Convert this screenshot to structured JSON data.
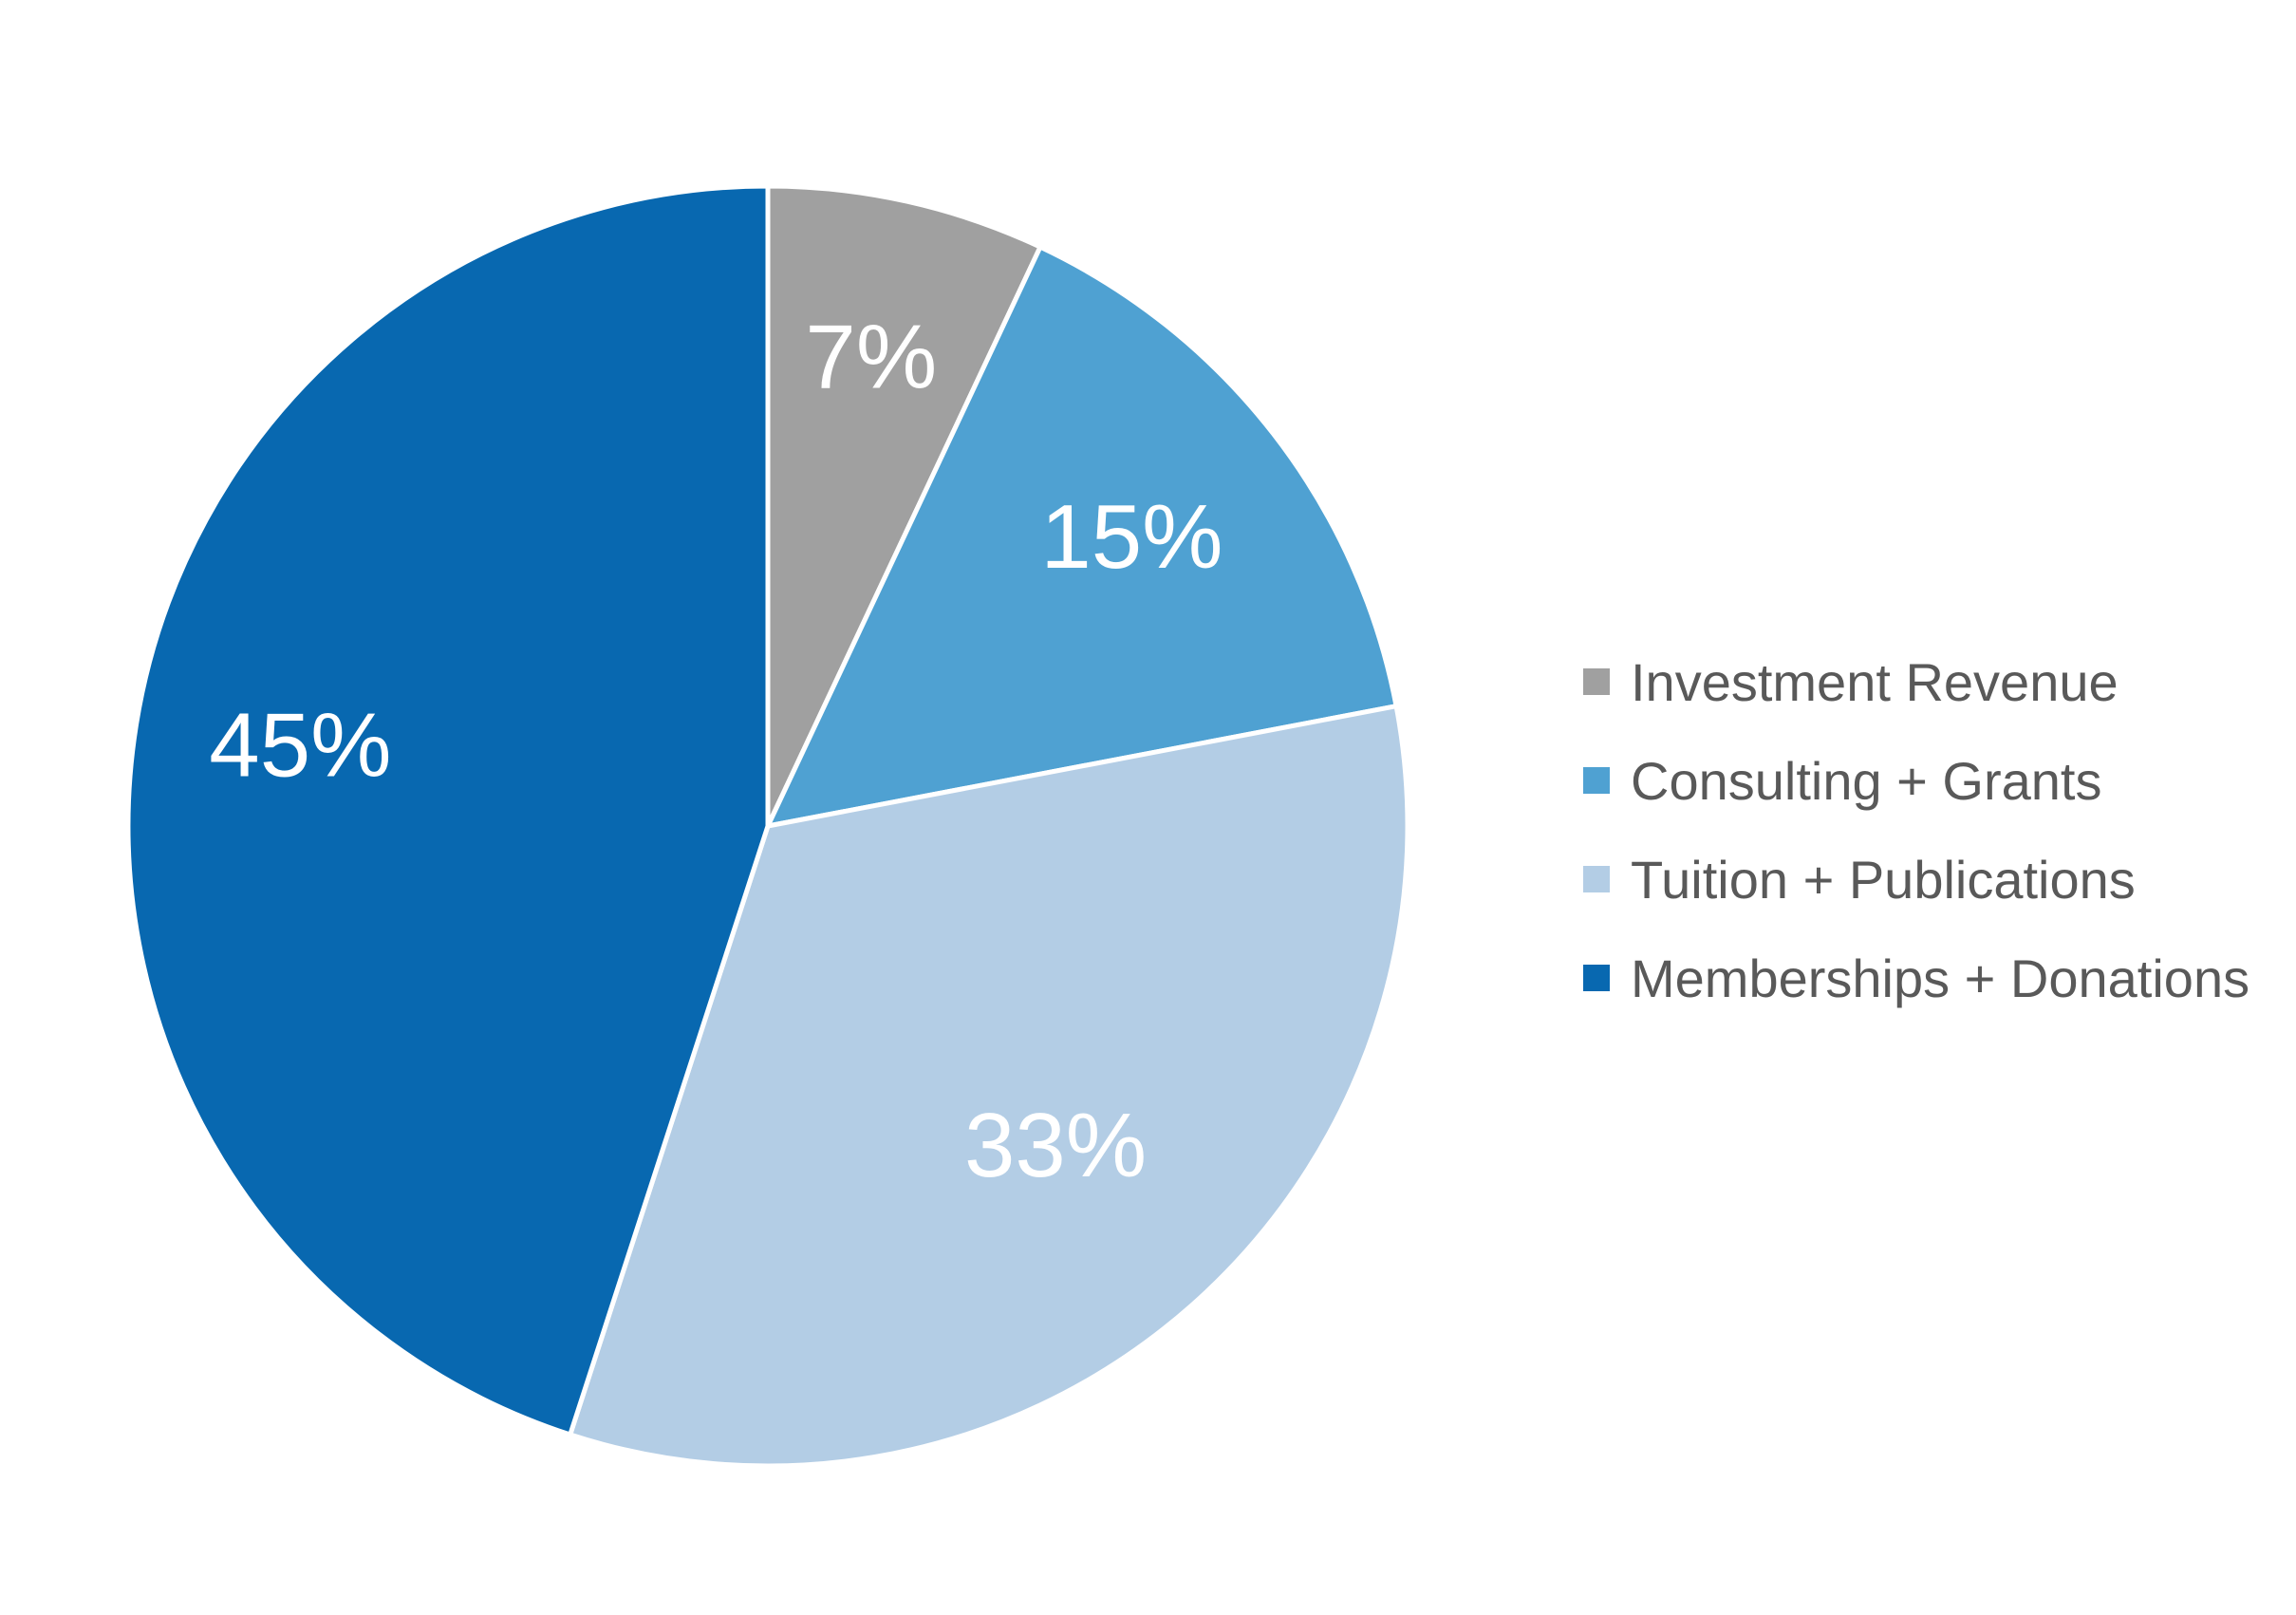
{
  "chart_data": {
    "type": "pie",
    "categories": [
      "Investment Revenue",
      "Consulting + Grants",
      "Tuition + Publications",
      "Memberships + Donations"
    ],
    "values": [
      7,
      15,
      33,
      45
    ],
    "labels": [
      "7%",
      "15%",
      "33%",
      "45%"
    ],
    "colors": [
      "#a0a0a0",
      "#4fa1d2",
      "#b3cde5",
      "#0868b0"
    ],
    "legend_position": "right",
    "start_angle": "top, clockwise"
  }
}
